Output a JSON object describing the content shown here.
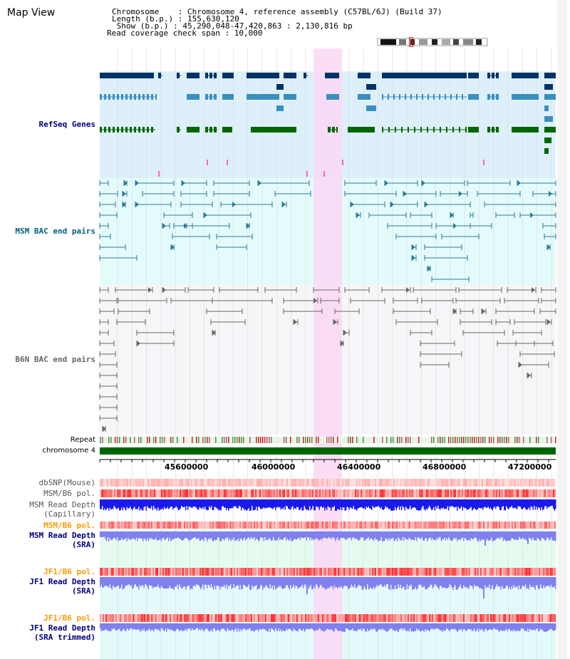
{
  "title": "Map View",
  "info": {
    "line1": "Chromosome    : Chromosome 4, reference assembly (C57BL/6J) (Build 37)",
    "line2": "Length (b.p.) : 155,630,120",
    "line3": " Show (b.p.) : 45,290,048-47,420,863 : 2,130,816 bp",
    "line4": "Read coverage check span : 10,000"
  },
  "tracks": {
    "refseq": "RefSeq Genes",
    "msm_bac": "MSM BAC end pairs",
    "b6n_bac": "B6N BAC end pairs",
    "repeat": "Repeat",
    "chromosome": "chromosome 4",
    "dbsnp": "dbSNP(Mouse)",
    "msm_b6_pol": "MSM/B6 pol.",
    "msm_depth_cap_1": "MSM Read Depth",
    "msm_depth_cap_2": "(Capillary)",
    "msm_b6_pol_2": "MSM/B6 pol.",
    "msm_depth_sra_1": "MSM Read Depth",
    "msm_depth_sra_2": "(SRA)",
    "jf1_b6_pol": "JF1/B6 pol.",
    "jf1_depth_1": "JF1 Read Depth",
    "jf1_depth_2": "(SRA)",
    "jf1_b6_pol_2": "JF1/B6 pol.",
    "jf1_trim_1": "JF1 Read Depth",
    "jf1_trim_2": "(SRA trimmed)"
  },
  "axis": {
    "ticks": [
      "45600000",
      "46000000",
      "46400000",
      "46800000",
      "47200000"
    ]
  },
  "colors": {
    "refseq_bg": "#ddf0fa",
    "msm_bac_bg": "#e4fbfb",
    "highlight": "#fad8f4",
    "gene_dark": "#003366",
    "gene_mid": "#3a8fbf",
    "gene_green": "#006600",
    "msm_pair": "#2a7a96",
    "b6n_pair": "#666666",
    "depth_blue": "#1a1aee",
    "depth_violet": "#8080ee",
    "label_navy": "#000080",
    "label_teal": "#006080",
    "label_orange": "#ff9900"
  }
}
